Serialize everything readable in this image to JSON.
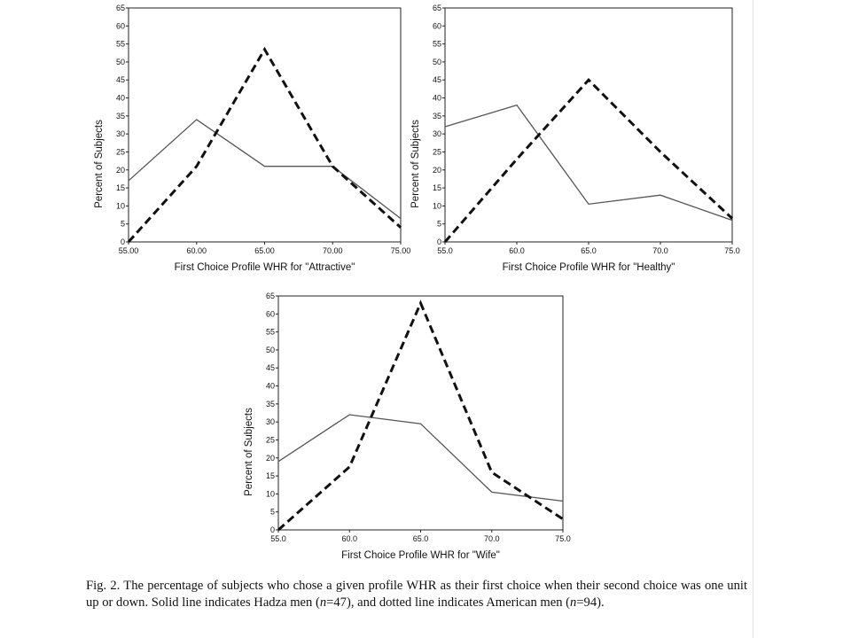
{
  "chart_data": [
    {
      "type": "line",
      "x": [
        55,
        60,
        65,
        70,
        75
      ],
      "x_tick_labels": [
        "55.00",
        "60.00",
        "65.00",
        "70.00",
        "75.00"
      ],
      "xlim": [
        55,
        75
      ],
      "ylim": [
        0,
        65
      ],
      "y_ticks": [
        0,
        5,
        10,
        15,
        20,
        25,
        30,
        35,
        40,
        45,
        50,
        55,
        60,
        65
      ],
      "xlabel": "First Choice Profile WHR for \"Attractive\"",
      "ylabel": "Percent of Subjects",
      "grid": false,
      "series": [
        {
          "style": "solid",
          "color": "#555555",
          "values": [
            17,
            34,
            21,
            21,
            6.5
          ]
        },
        {
          "style": "dashed",
          "color": "#111111",
          "values": [
            0,
            21,
            53.5,
            21,
            4
          ]
        }
      ]
    },
    {
      "type": "line",
      "x": [
        55,
        60,
        65,
        70,
        75
      ],
      "x_tick_labels": [
        "55.0",
        "60.0",
        "65.0",
        "70.0",
        "75.0"
      ],
      "xlim": [
        55,
        75
      ],
      "ylim": [
        0,
        65
      ],
      "y_ticks": [
        0,
        5,
        10,
        15,
        20,
        25,
        30,
        35,
        40,
        45,
        50,
        55,
        60,
        65
      ],
      "xlabel": "First Choice Profile WHR for \"Healthy\"",
      "ylabel": "Percent of Subjects",
      "grid": false,
      "series": [
        {
          "style": "solid",
          "color": "#555555",
          "values": [
            32,
            38,
            10.5,
            13,
            6
          ]
        },
        {
          "style": "dashed",
          "color": "#111111",
          "values": [
            0,
            23,
            45,
            25,
            6.5
          ]
        }
      ]
    },
    {
      "type": "line",
      "x": [
        55,
        60,
        65,
        70,
        75
      ],
      "x_tick_labels": [
        "55.0",
        "60.0",
        "65.0",
        "70.0",
        "75.0"
      ],
      "xlim": [
        55,
        75
      ],
      "ylim": [
        0,
        65
      ],
      "y_ticks": [
        0,
        5,
        10,
        15,
        20,
        25,
        30,
        35,
        40,
        45,
        50,
        55,
        60,
        65
      ],
      "xlabel": "First Choice Profile WHR for \"Wife\"",
      "ylabel": "Percent of Subjects",
      "grid": false,
      "series": [
        {
          "style": "solid",
          "color": "#555555",
          "values": [
            19,
            32,
            29.5,
            10.5,
            8
          ]
        },
        {
          "style": "dashed",
          "color": "#111111",
          "values": [
            0,
            17.5,
            63,
            16,
            3
          ]
        }
      ]
    }
  ],
  "caption": {
    "part1": "Fig. 2. The percentage of subjects who chose a given profile WHR as their first choice when their second choice was one unit up or down. Solid line indicates Hadza men (",
    "n_symbol_1": "n",
    "part2": "=47), and dotted line indicates American men (",
    "n_symbol_2": "n",
    "part3": "=94)."
  }
}
